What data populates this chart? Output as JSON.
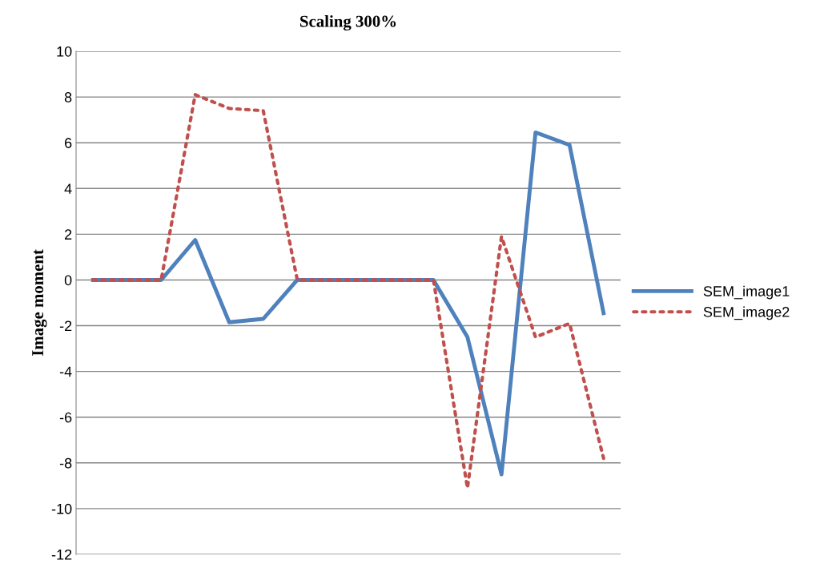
{
  "chart_data": {
    "type": "line",
    "title": "Scaling 300%",
    "ylabel": "Image moment",
    "categories": [
      null,
      null,
      null,
      null,
      null,
      null,
      null,
      null,
      null,
      null,
      null,
      null,
      null,
      null,
      null,
      null
    ],
    "series": [
      {
        "name": "SEM_image1",
        "color": "#4f81bd",
        "line_style": "solid",
        "values": [
          0,
          0,
          0,
          1.75,
          -1.85,
          -1.7,
          0,
          0,
          0,
          0,
          0,
          -2.5,
          -8.5,
          6.45,
          5.9,
          -1.45
        ]
      },
      {
        "name": "SEM_image2",
        "color": "#c0504d",
        "line_style": "dotted",
        "values": [
          0,
          0,
          0,
          8.1,
          7.5,
          7.4,
          0,
          0,
          0,
          0,
          0,
          -9.1,
          1.9,
          -2.5,
          -1.9,
          -7.8
        ]
      }
    ],
    "ylim": [
      -12,
      10
    ],
    "yticks": [
      -12,
      -10,
      -8,
      -6,
      -4,
      -2,
      0,
      2,
      4,
      6,
      8,
      10
    ],
    "grid": "y",
    "legend": "right",
    "marker": "none"
  }
}
